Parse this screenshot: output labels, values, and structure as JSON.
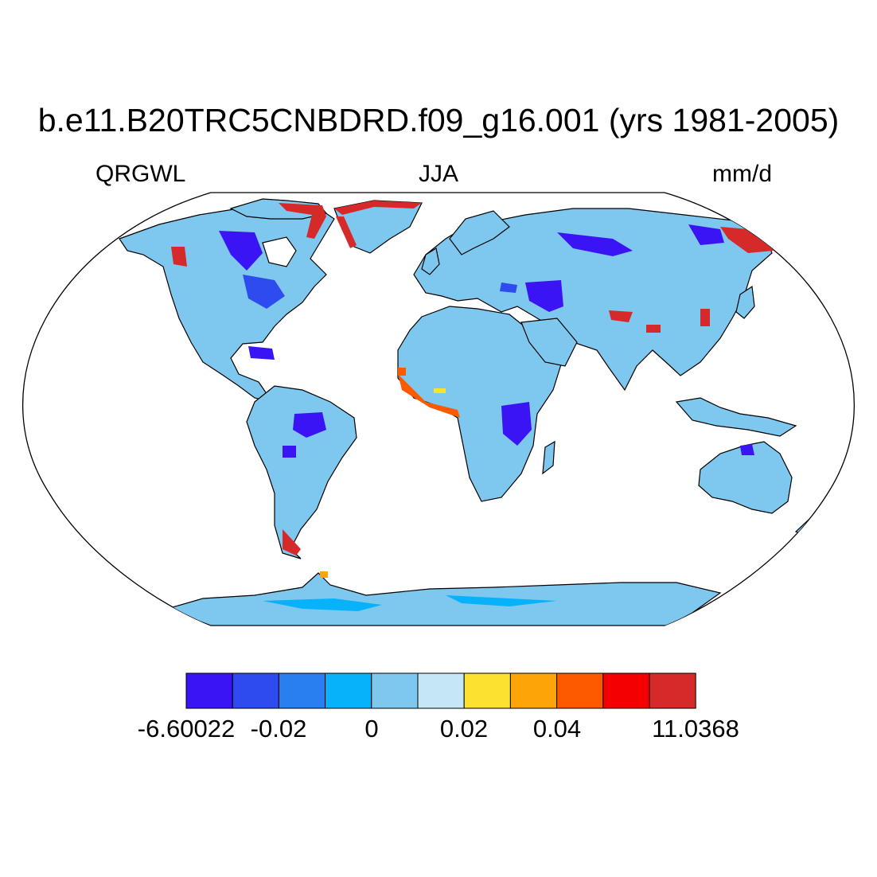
{
  "title": "b.e11.B20TRC5CNBDRD.f09_g16.001 (yrs 1981-2005)",
  "left_label": "QRGWL",
  "center_label": "JJA",
  "right_label": "mm/d",
  "map": {
    "projection": "robinson",
    "ocean_color": "#ffffff",
    "land_base_color": "#7ec8ef",
    "coastline_color": "#000000"
  },
  "colorbar": {
    "colors": [
      "#3a14f5",
      "#2e4bef",
      "#2a7ff0",
      "#08b2fb",
      "#7ec8ef",
      "#c5e6f5",
      "#fde130",
      "#fca408",
      "#fd5a00",
      "#f50000",
      "#d62a2a"
    ],
    "labels": [
      "-6.60022",
      "-0.02",
      "0",
      "0.02",
      "0.04",
      "11.0368"
    ]
  }
}
